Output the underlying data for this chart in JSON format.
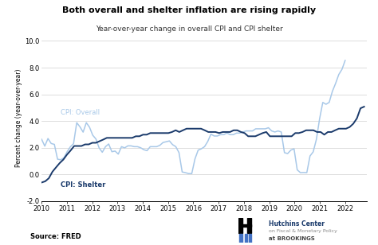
{
  "title": "Both overall and shelter inflation are rising rapidly",
  "subtitle": "Year-over-year change in overall CPI and CPI shelter",
  "ylabel": "Percent change (year-over-year)",
  "source": "Source: FRED",
  "ylim": [
    -2.0,
    10.5
  ],
  "yticks": [
    -2.0,
    0.0,
    2.0,
    4.0,
    6.0,
    8.0,
    10.0
  ],
  "xlim": [
    2010.0,
    2022.85
  ],
  "xticks": [
    2010,
    2011,
    2012,
    2013,
    2014,
    2015,
    2016,
    2017,
    2018,
    2019,
    2020,
    2021,
    2022
  ],
  "color_overall": "#a8c8e8",
  "color_shelter": "#1a3a6b",
  "label_overall": "CPI: Overall",
  "label_shelter": "CPI: Shelter",
  "overall_data": [
    2.63,
    2.11,
    2.68,
    2.31,
    2.24,
    1.13,
    1.09,
    1.24,
    1.69,
    2.06,
    2.29,
    3.87,
    3.56,
    3.16,
    3.87,
    3.53,
    2.93,
    2.65,
    1.98,
    1.65,
    2.07,
    2.27,
    1.69,
    1.74,
    1.51,
    2.07,
    1.98,
    2.13,
    2.13,
    2.07,
    2.07,
    1.99,
    1.84,
    1.77,
    2.07,
    2.07,
    2.07,
    2.17,
    2.38,
    2.44,
    2.5,
    2.22,
    2.07,
    1.62,
    0.17,
    0.12,
    0.05,
    0.05,
    1.15,
    1.81,
    1.91,
    2.07,
    2.46,
    3.01,
    2.87,
    2.87,
    2.97,
    2.97,
    3.09,
    2.97,
    2.97,
    3.09,
    3.09,
    3.17,
    3.25,
    3.25,
    3.25,
    3.41,
    3.41,
    3.41,
    3.41,
    3.49,
    3.25,
    3.17,
    3.25,
    3.17,
    1.62,
    1.55,
    1.81,
    1.91,
    0.33,
    0.12,
    0.13,
    0.12,
    1.37,
    1.68,
    2.62,
    4.16,
    5.39,
    5.25,
    5.39,
    6.22,
    6.81,
    7.48,
    7.87,
    8.54
  ],
  "shelter_data": [
    -0.62,
    -0.53,
    -0.3,
    0.19,
    0.52,
    0.84,
    1.1,
    1.47,
    1.78,
    2.12,
    2.12,
    2.12,
    2.24,
    2.24,
    2.36,
    2.36,
    2.48,
    2.6,
    2.73,
    2.73,
    2.73,
    2.73,
    2.73,
    2.73,
    2.73,
    2.73,
    2.85,
    2.85,
    2.97,
    2.97,
    3.09,
    3.09,
    3.09,
    3.09,
    3.09,
    3.09,
    3.17,
    3.3,
    3.17,
    3.3,
    3.42,
    3.42,
    3.42,
    3.42,
    3.42,
    3.3,
    3.17,
    3.17,
    3.17,
    3.09,
    3.17,
    3.17,
    3.17,
    3.3,
    3.3,
    3.17,
    3.09,
    2.85,
    2.85,
    2.85,
    2.97,
    3.09,
    3.17,
    2.85,
    2.85,
    2.85,
    2.85,
    2.85,
    2.85,
    2.85,
    3.09,
    3.09,
    3.17,
    3.3,
    3.3,
    3.3,
    3.17,
    3.17,
    2.97,
    3.17,
    3.17,
    3.3,
    3.42,
    3.42,
    3.42,
    3.54,
    3.79,
    4.19,
    4.95,
    5.07
  ],
  "background_color": "#ffffff",
  "grid_color": "#d0d0d0",
  "hutchins_text1": "Hutchins Center",
  "hutchins_text2": "on Fiscal & Monetary Policy",
  "hutchins_text3": "at BROOKINGS"
}
